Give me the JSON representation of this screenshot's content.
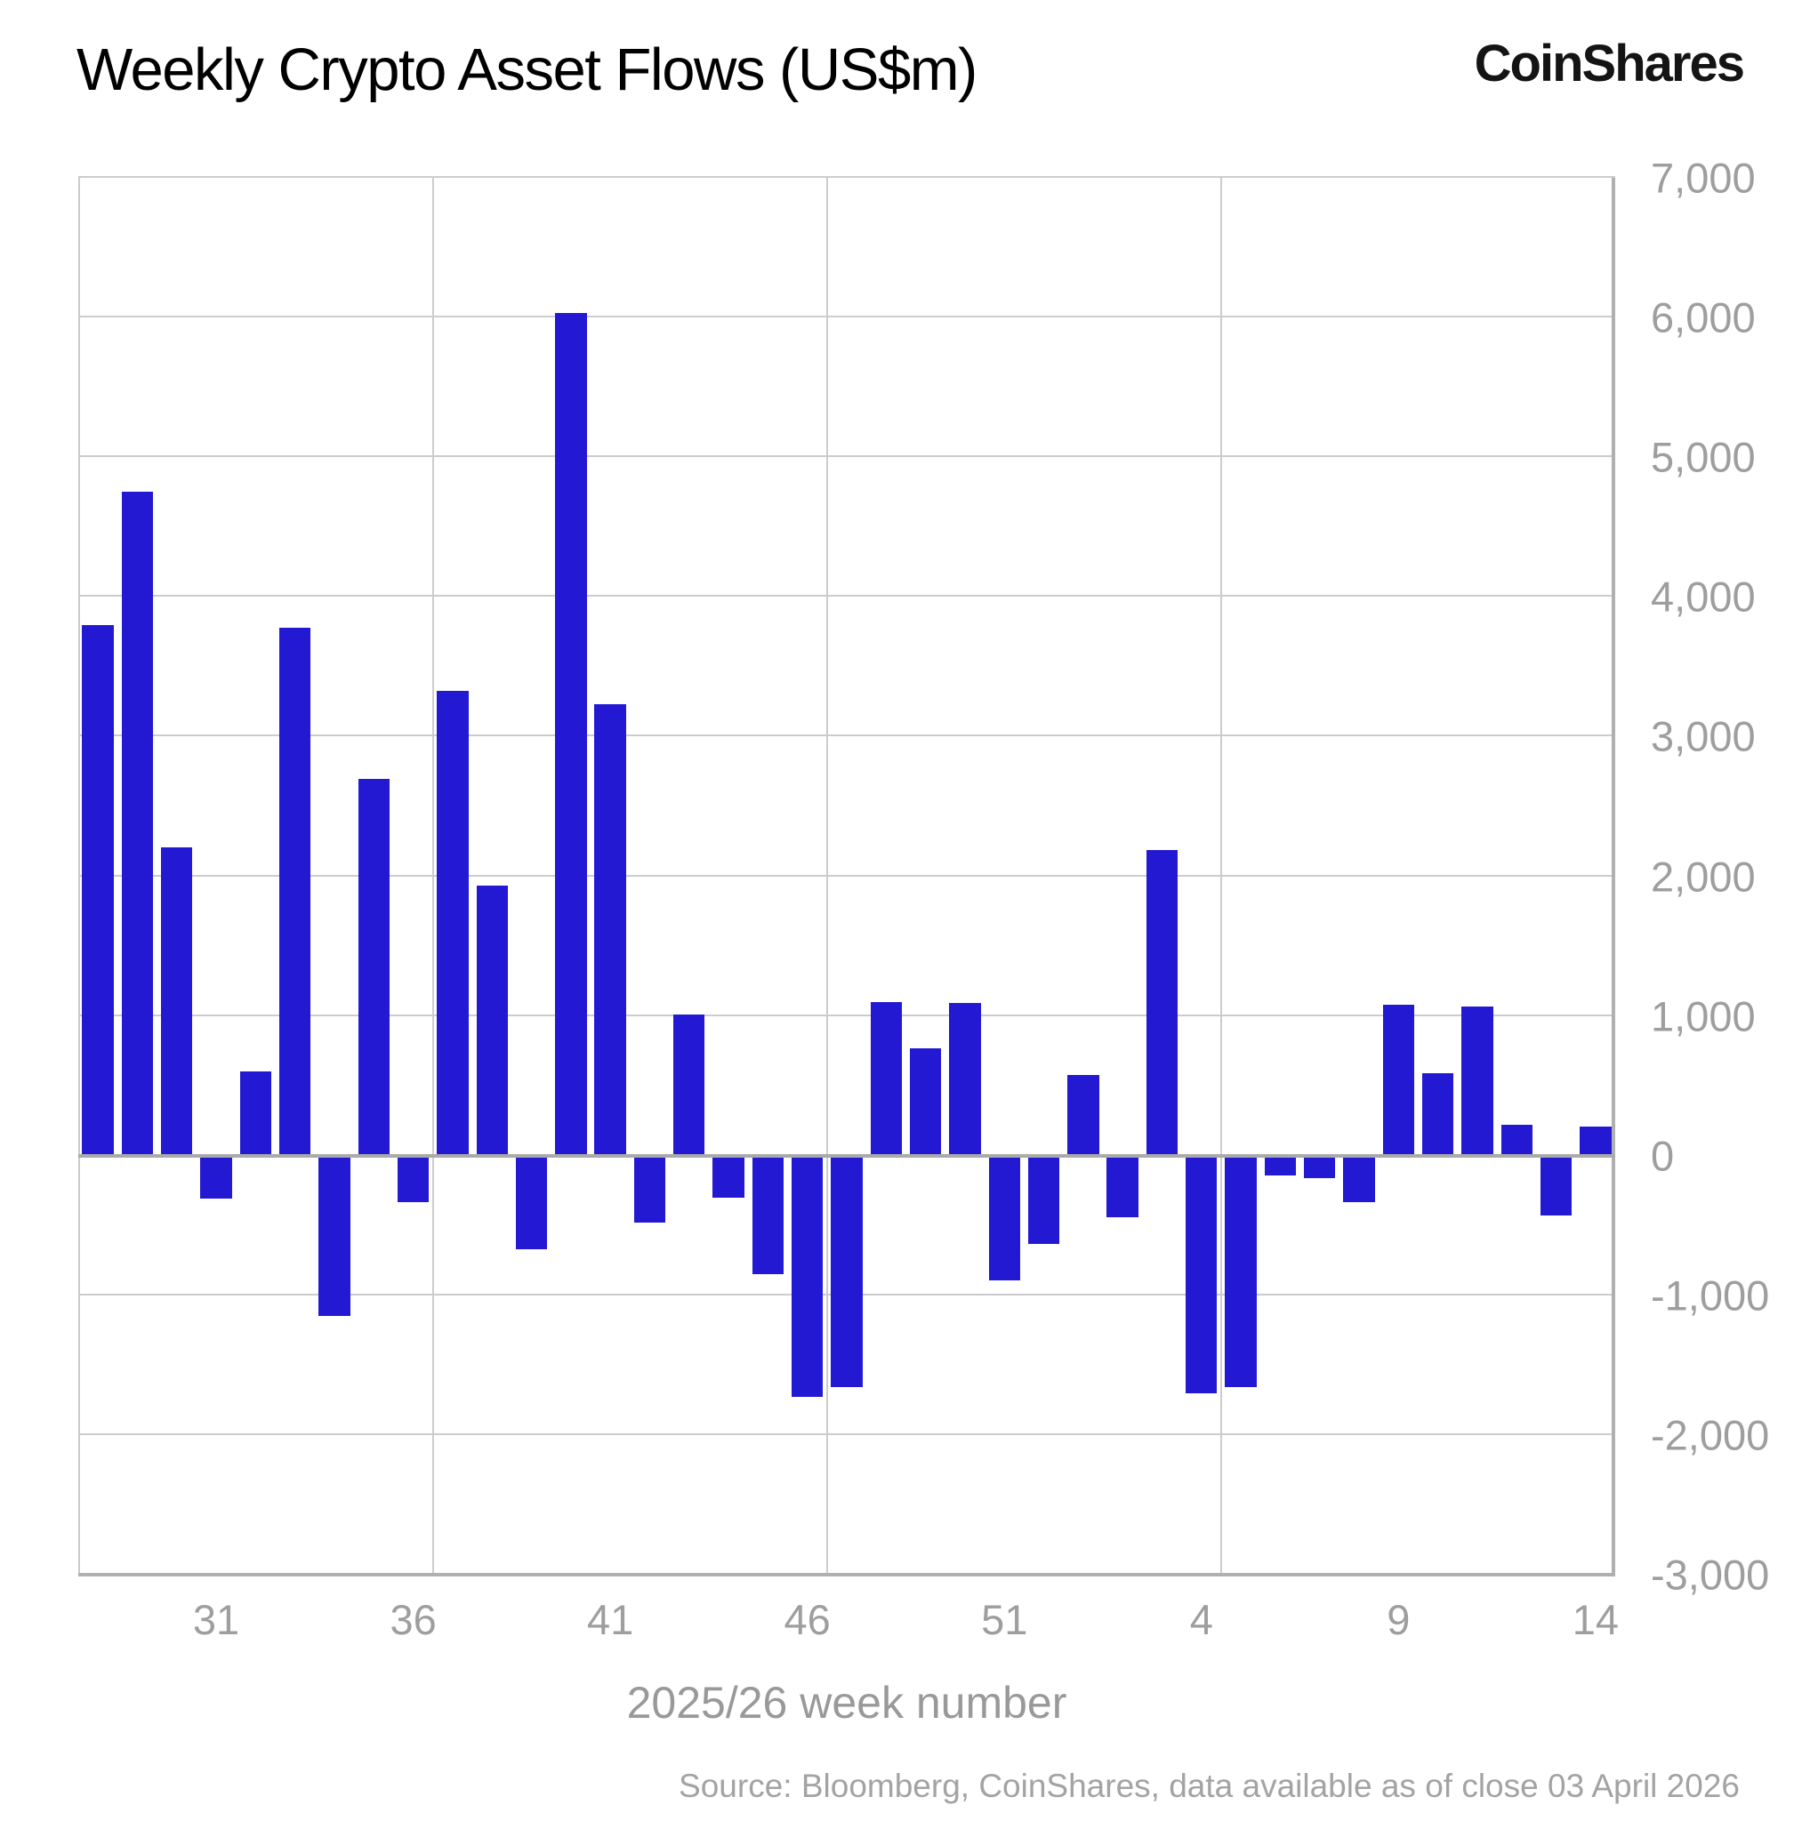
{
  "header": {
    "title": "Weekly Crypto Asset Flows (US$m)",
    "logo": "CoinShares"
  },
  "footer": {
    "source": "Source: Bloomberg, CoinShares, data available as of close 03 April 2026"
  },
  "colors": {
    "bar": "#2419d3",
    "gridline": "#cccccc",
    "axis_line": "#b0b0b0",
    "tick_label": "#9e9e9e",
    "title_text": "#000000"
  },
  "chart_data": {
    "type": "bar",
    "title": "Weekly Crypto Asset Flows (US$m)",
    "xlabel": "2025/26 week number",
    "ylabel": "",
    "ylim": [
      -3000,
      7000
    ],
    "grid": true,
    "legend_position": "none",
    "categories": [
      "28",
      "29",
      "30",
      "31",
      "32",
      "33",
      "34",
      "35",
      "36",
      "37",
      "38",
      "39",
      "40",
      "41",
      "42",
      "43",
      "44",
      "45",
      "46",
      "47",
      "48",
      "49",
      "50",
      "51",
      "52",
      "1",
      "2",
      "3",
      "4",
      "5",
      "6",
      "7",
      "8",
      "9",
      "10",
      "11",
      "12",
      "13",
      "14"
    ],
    "values": [
      3800,
      4750,
      2210,
      -310,
      600,
      3780,
      -1150,
      2700,
      -330,
      3330,
      1930,
      -670,
      6030,
      3230,
      -480,
      1010,
      -300,
      -850,
      -1730,
      -1660,
      1100,
      770,
      1090,
      -890,
      -630,
      580,
      -440,
      2190,
      -1700,
      -1660,
      -140,
      -160,
      -330,
      1080,
      590,
      1070,
      220,
      -430,
      210
    ],
    "y_ticks": [
      "7,000",
      "6,000",
      "5,000",
      "4,000",
      "3,000",
      "2,000",
      "1,000",
      "0",
      "-1,000",
      "-2,000",
      "-3,000"
    ],
    "x_ticks": [
      "31",
      "36",
      "41",
      "46",
      "51",
      "4",
      "9",
      "14"
    ],
    "x_grid_after": [
      "36",
      "46",
      "4"
    ]
  }
}
